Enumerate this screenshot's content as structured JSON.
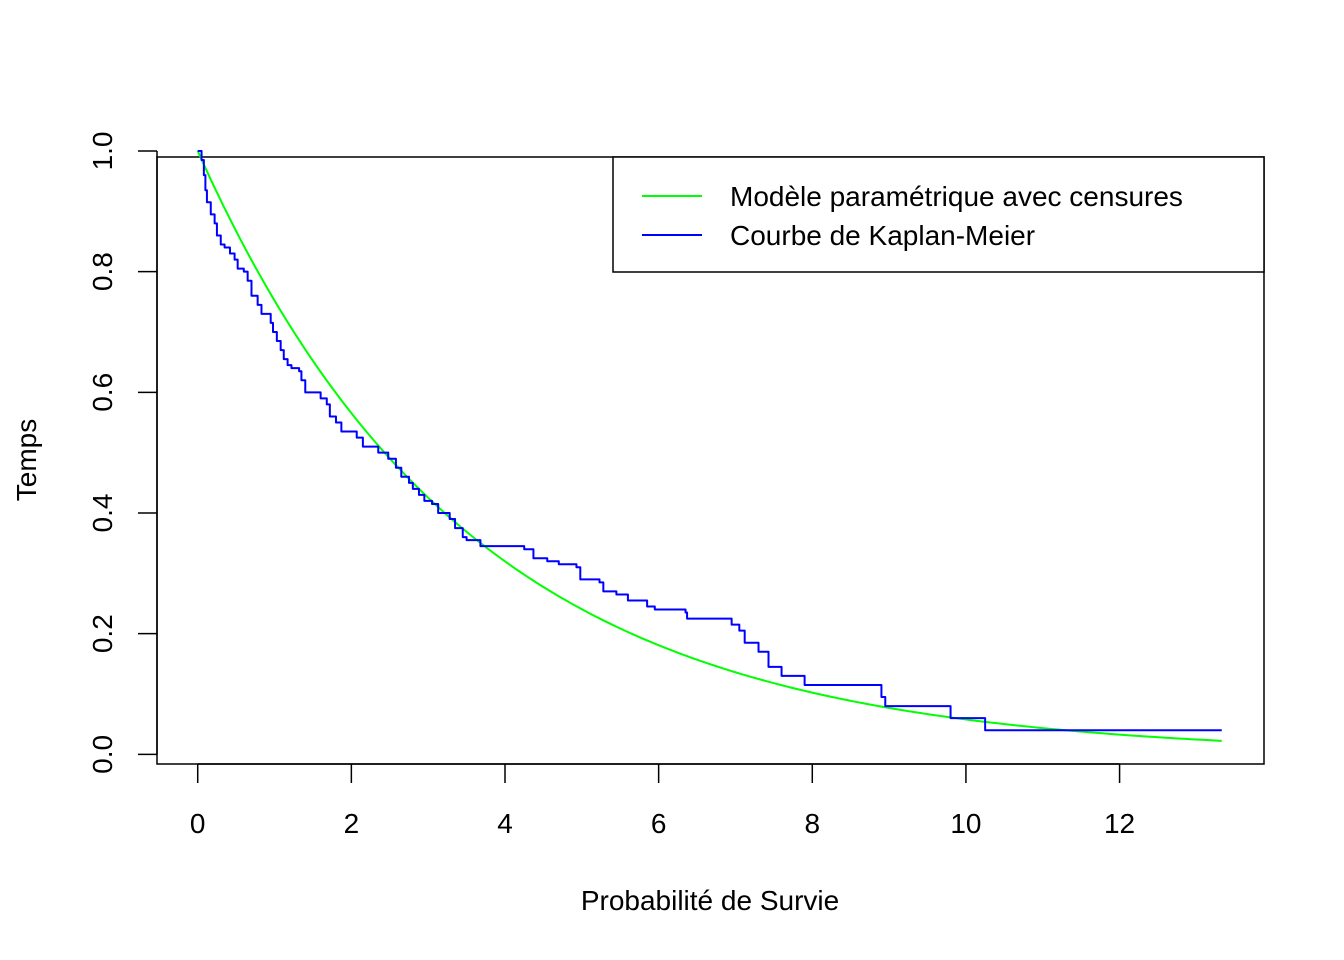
{
  "chart_data": {
    "type": "line",
    "title": "",
    "xlabel": "Probabilité de Survie",
    "ylabel": "Temps",
    "xlim": [
      -0.53,
      13.88
    ],
    "ylim": [
      -0.016,
      0.99
    ],
    "x_ticks": [
      0,
      2,
      4,
      6,
      8,
      10,
      12
    ],
    "y_ticks": [
      0.0,
      0.2,
      0.4,
      0.6,
      0.8,
      1.0
    ],
    "x_tick_labels": [
      "0",
      "2",
      "4",
      "6",
      "8",
      "10",
      "12"
    ],
    "y_tick_labels": [
      "0.0",
      "0.2",
      "0.4",
      "0.6",
      "0.8",
      "1.0"
    ],
    "grid": false,
    "legend": {
      "position": "top-right",
      "entries": [
        {
          "label": "Modèle paramétrique avec censures",
          "color": "#00ff00"
        },
        {
          "label": "Courbe de Kaplan-Meier",
          "color": "#0000ff"
        }
      ]
    },
    "series": [
      {
        "name": "Modèle paramétrique avec censures",
        "color": "#00ff00",
        "kind": "exponential",
        "rate": 0.285,
        "x_range": [
          0,
          13.33
        ]
      },
      {
        "name": "Courbe de Kaplan-Meier",
        "color": "#0000ff",
        "kind": "step",
        "points": [
          [
            0,
            1.0
          ],
          [
            0.05,
            0.985
          ],
          [
            0.08,
            0.96
          ],
          [
            0.1,
            0.935
          ],
          [
            0.12,
            0.915
          ],
          [
            0.17,
            0.895
          ],
          [
            0.22,
            0.88
          ],
          [
            0.25,
            0.86
          ],
          [
            0.3,
            0.845
          ],
          [
            0.35,
            0.84
          ],
          [
            0.42,
            0.83
          ],
          [
            0.48,
            0.82
          ],
          [
            0.52,
            0.805
          ],
          [
            0.6,
            0.8
          ],
          [
            0.65,
            0.785
          ],
          [
            0.7,
            0.76
          ],
          [
            0.78,
            0.745
          ],
          [
            0.83,
            0.73
          ],
          [
            0.95,
            0.715
          ],
          [
            0.98,
            0.7
          ],
          [
            1.03,
            0.685
          ],
          [
            1.08,
            0.67
          ],
          [
            1.12,
            0.655
          ],
          [
            1.17,
            0.645
          ],
          [
            1.22,
            0.64
          ],
          [
            1.32,
            0.635
          ],
          [
            1.35,
            0.62
          ],
          [
            1.4,
            0.6
          ],
          [
            1.6,
            0.59
          ],
          [
            1.68,
            0.58
          ],
          [
            1.72,
            0.56
          ],
          [
            1.8,
            0.55
          ],
          [
            1.87,
            0.535
          ],
          [
            2.07,
            0.525
          ],
          [
            2.15,
            0.51
          ],
          [
            2.35,
            0.5
          ],
          [
            2.48,
            0.49
          ],
          [
            2.58,
            0.475
          ],
          [
            2.65,
            0.46
          ],
          [
            2.75,
            0.45
          ],
          [
            2.8,
            0.44
          ],
          [
            2.88,
            0.43
          ],
          [
            2.95,
            0.42
          ],
          [
            3.05,
            0.415
          ],
          [
            3.13,
            0.4
          ],
          [
            3.28,
            0.39
          ],
          [
            3.35,
            0.375
          ],
          [
            3.45,
            0.36
          ],
          [
            3.5,
            0.355
          ],
          [
            3.62,
            0.355
          ],
          [
            3.68,
            0.345
          ],
          [
            4.25,
            0.34
          ],
          [
            4.37,
            0.325
          ],
          [
            4.55,
            0.32
          ],
          [
            4.7,
            0.315
          ],
          [
            4.93,
            0.31
          ],
          [
            4.98,
            0.29
          ],
          [
            5.23,
            0.285
          ],
          [
            5.28,
            0.27
          ],
          [
            5.45,
            0.265
          ],
          [
            5.6,
            0.255
          ],
          [
            5.85,
            0.245
          ],
          [
            5.95,
            0.24
          ],
          [
            6.35,
            0.235
          ],
          [
            6.37,
            0.225
          ],
          [
            6.95,
            0.215
          ],
          [
            7.05,
            0.205
          ],
          [
            7.12,
            0.185
          ],
          [
            7.3,
            0.17
          ],
          [
            7.43,
            0.145
          ],
          [
            7.6,
            0.13
          ],
          [
            7.9,
            0.115
          ],
          [
            8.9,
            0.095
          ],
          [
            8.95,
            0.08
          ],
          [
            9.8,
            0.06
          ],
          [
            10.25,
            0.04
          ],
          [
            13.33,
            0.04
          ]
        ]
      }
    ]
  }
}
